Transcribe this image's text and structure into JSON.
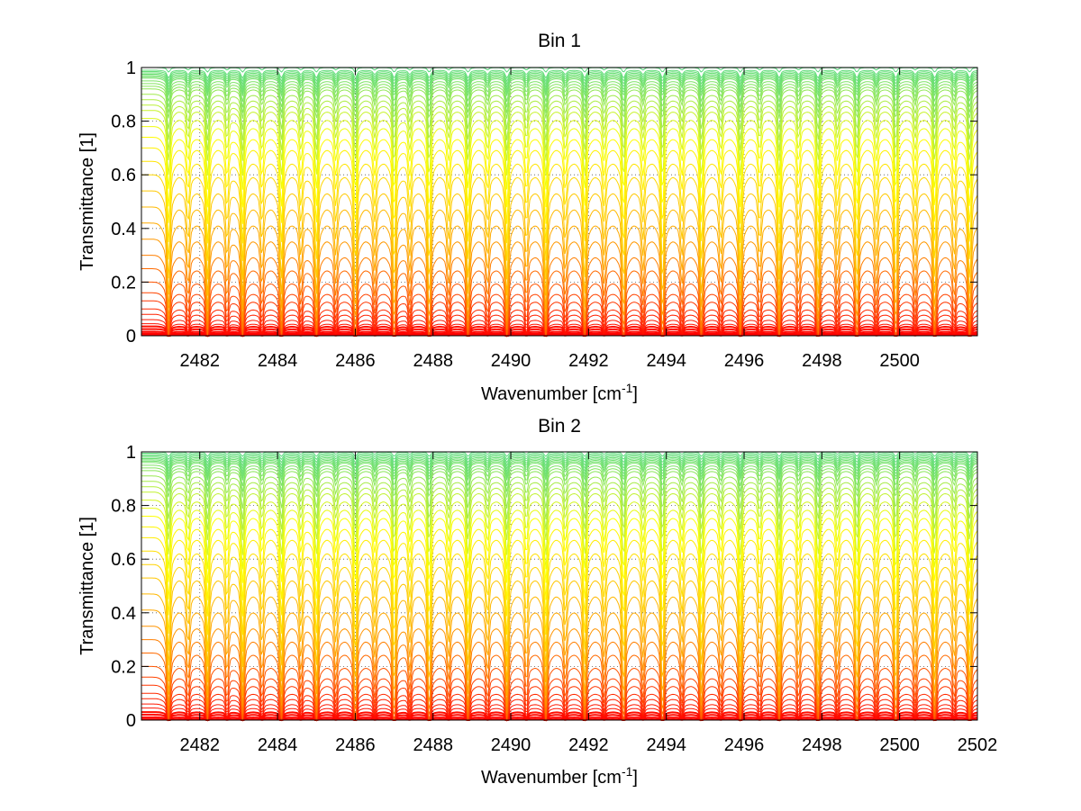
{
  "chart_data": [
    {
      "type": "line",
      "title": "Bin 1",
      "xlabel": "Wavenumber [cm",
      "xlabel_sup": "-1",
      "xlabel_tail": "]",
      "ylabel": "Transmittance [1]",
      "xlim": [
        2480.5,
        2502
      ],
      "ylim": [
        0,
        1
      ],
      "xticks": [
        2482,
        2484,
        2486,
        2488,
        2490,
        2492,
        2494,
        2496,
        2498,
        2500
      ],
      "yticks": [
        0,
        0.2,
        0.4,
        0.6,
        0.8,
        1
      ],
      "ytick_labels": [
        "0",
        "0.2",
        "0.4",
        "0.6",
        "0.8",
        "1"
      ],
      "grid": true,
      "line_count": 40,
      "baseline_levels": [
        1.0,
        0.99,
        0.985,
        0.98,
        0.975,
        0.97,
        0.965,
        0.96,
        0.95,
        0.94,
        0.93,
        0.92,
        0.9,
        0.88,
        0.86,
        0.84,
        0.81,
        0.78,
        0.74,
        0.7,
        0.65,
        0.6,
        0.54,
        0.48,
        0.42,
        0.36,
        0.3,
        0.25,
        0.2,
        0.16,
        0.13,
        0.1,
        0.08,
        0.06,
        0.045,
        0.035,
        0.025,
        0.015,
        0.008,
        0.003
      ],
      "absorption_lines": [
        2481.2,
        2481.7,
        2482.2,
        2482.7,
        2483.1,
        2483.6,
        2484.1,
        2484.6,
        2485.0,
        2485.5,
        2486.0,
        2486.5,
        2487.0,
        2487.4,
        2487.9,
        2488.4,
        2488.9,
        2489.4,
        2489.9,
        2490.4,
        2490.9,
        2491.4,
        2491.9,
        2492.4,
        2492.9,
        2493.4,
        2493.9,
        2494.4,
        2494.9,
        2495.4,
        2495.9,
        2496.4,
        2496.9,
        2497.4,
        2497.9,
        2498.4,
        2498.9,
        2499.4,
        2499.9,
        2500.4,
        2500.9,
        2501.4,
        2501.8
      ],
      "colormap": [
        "#00c8c8",
        "#ffff00",
        "#ffa000",
        "#ff0000"
      ]
    },
    {
      "type": "line",
      "title": "Bin 2",
      "xlabel": "Wavenumber [cm",
      "xlabel_sup": "-1",
      "xlabel_tail": "]",
      "ylabel": "Transmittance [1]",
      "xlim": [
        2480.5,
        2502
      ],
      "ylim": [
        0,
        1
      ],
      "xticks": [
        2482,
        2484,
        2486,
        2488,
        2490,
        2492,
        2494,
        2496,
        2498,
        2500,
        2502
      ],
      "yticks": [
        0,
        0.2,
        0.4,
        0.6,
        0.8,
        1
      ],
      "ytick_labels": [
        "0",
        "0.2",
        "0.4",
        "0.6",
        "0.8",
        "1"
      ],
      "grid": true,
      "line_count": 40,
      "baseline_levels": [
        1.0,
        0.995,
        0.99,
        0.985,
        0.98,
        0.975,
        0.97,
        0.965,
        0.96,
        0.95,
        0.94,
        0.93,
        0.91,
        0.89,
        0.87,
        0.85,
        0.82,
        0.79,
        0.76,
        0.72,
        0.68,
        0.63,
        0.58,
        0.53,
        0.47,
        0.41,
        0.35,
        0.3,
        0.25,
        0.2,
        0.16,
        0.13,
        0.1,
        0.08,
        0.06,
        0.045,
        0.03,
        0.02,
        0.01,
        0.003
      ],
      "absorption_lines": [
        2481.2,
        2481.7,
        2482.2,
        2482.7,
        2483.1,
        2483.6,
        2484.1,
        2484.6,
        2485.0,
        2485.5,
        2486.0,
        2486.5,
        2487.0,
        2487.4,
        2487.9,
        2488.4,
        2488.9,
        2489.4,
        2489.9,
        2490.4,
        2490.9,
        2491.4,
        2491.9,
        2492.4,
        2492.9,
        2493.4,
        2493.9,
        2494.4,
        2494.9,
        2495.4,
        2495.9,
        2496.4,
        2496.9,
        2497.4,
        2497.9,
        2498.4,
        2498.9,
        2499.4,
        2499.9,
        2500.4,
        2500.9,
        2501.4,
        2501.8
      ],
      "colormap": [
        "#00c8c8",
        "#ffff00",
        "#ffa000",
        "#ff0000"
      ]
    }
  ]
}
